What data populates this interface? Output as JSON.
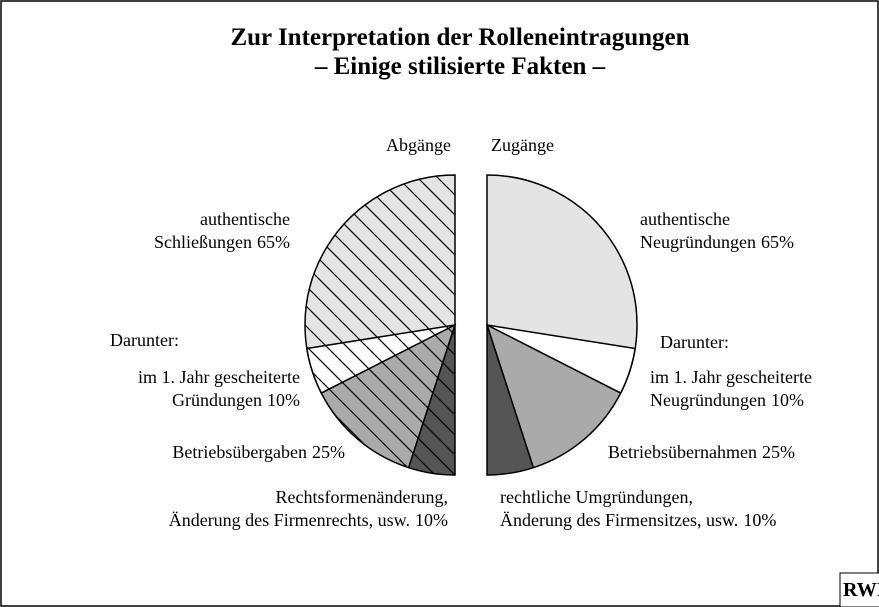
{
  "chart_data": {
    "type": "pie",
    "title": [
      "Zur Interpretation der Rolleneintragungen",
      "– Einige stilisierte Fakten –"
    ],
    "logo": "RWI",
    "series": [
      {
        "name": "Abgänge",
        "hatch": true,
        "annotation": "Darunter:",
        "categories": [
          [
            "authentische",
            "Schließungen"
          ],
          [
            "im 1. Jahr gescheiterte",
            "Gründungen"
          ],
          [
            "Betriebsübergaben"
          ],
          [
            "Rechtsformenänderung,",
            "Änderung des Firmenrechts, usw."
          ]
        ],
        "values": [
          65,
          10,
          25,
          10
        ],
        "value_labels": [
          "65%",
          "10%",
          "25%",
          "10%"
        ],
        "part_of": [
          null,
          0,
          null,
          null
        ],
        "colors": [
          "#e4e4e4",
          "#ffffff",
          "#aaaaaa",
          "#555555"
        ]
      },
      {
        "name": "Zugänge",
        "hatch": false,
        "annotation": "Darunter:",
        "categories": [
          [
            "authentische",
            "Neugründungen"
          ],
          [
            "im 1. Jahr  gescheiterte",
            "Neugründungen"
          ],
          [
            "Betriebsübernahmen"
          ],
          [
            "rechtliche Umgründungen,",
            "Änderung des Firmensitzes, usw."
          ]
        ],
        "values": [
          65,
          10,
          25,
          10
        ],
        "value_labels": [
          "65%",
          "10%",
          "25%",
          "10%"
        ],
        "part_of": [
          null,
          0,
          null,
          null
        ],
        "colors": [
          "#e4e4e4",
          "#ffffff",
          "#aaaaaa",
          "#555555"
        ]
      }
    ]
  }
}
